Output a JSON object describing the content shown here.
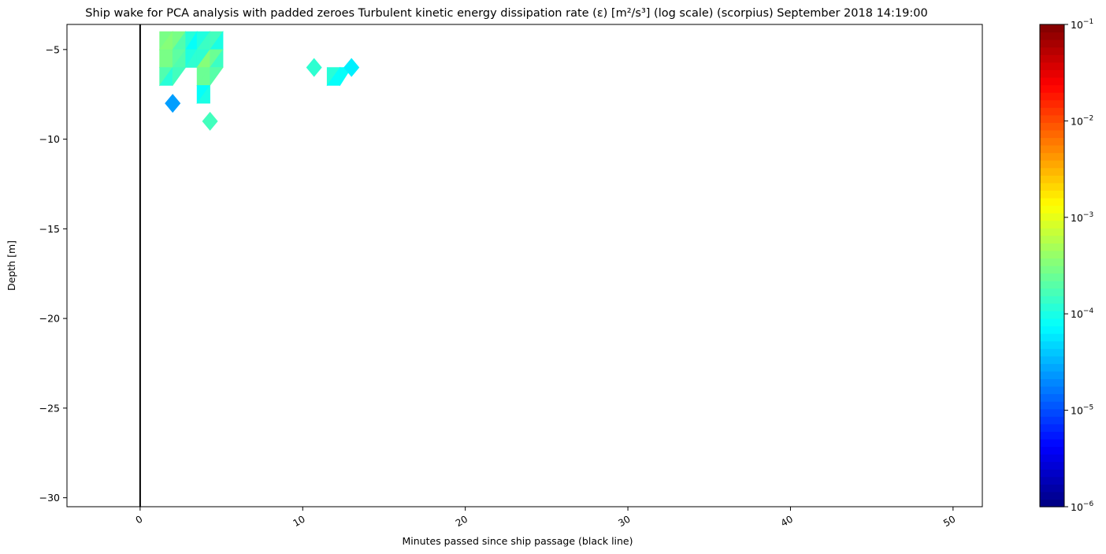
{
  "chart_data": {
    "type": "heatmap",
    "title": "Ship wake for PCA analysis with padded zeroes Turbulent kinetic energy dissipation rate (ε) [m²/s³] (log scale) (scorpius) September 2018 14:19:00",
    "xlabel": "Minutes passed since ship passage (black line)",
    "ylabel": "Depth [m]",
    "xlim": [
      -4.5,
      51.8
    ],
    "ylim": [
      -30.5,
      -3.6
    ],
    "x_ticks": [
      0,
      10,
      20,
      30,
      40,
      50
    ],
    "x_tick_labels": [
      "0",
      "10",
      "20",
      "30",
      "40",
      "50"
    ],
    "y_ticks": [
      -5,
      -10,
      -15,
      -20,
      -25,
      -30
    ],
    "y_tick_labels": [
      "−5",
      "−10",
      "−15",
      "−20",
      "−25",
      "−30"
    ],
    "ship_passage_line_x": 0,
    "ship_passage_line_color": "#000000",
    "colormap": "jet",
    "colorbar_scale": "log",
    "colorbar_range": [
      1e-06,
      0.1
    ],
    "colorbar_ticks": [
      {
        "value": 0.1,
        "base": "10",
        "exp": "−1"
      },
      {
        "value": 0.01,
        "base": "10",
        "exp": "−2"
      },
      {
        "value": 0.001,
        "base": "10",
        "exp": "−3"
      },
      {
        "value": 0.0001,
        "base": "10",
        "exp": "−4"
      },
      {
        "value": 1e-05,
        "base": "10",
        "exp": "−5"
      },
      {
        "value": 1e-06,
        "base": "10",
        "exp": "−6"
      }
    ],
    "depths": [
      -4,
      -5,
      -6,
      -7,
      -8,
      -9
    ],
    "profiles": [
      {
        "minute": 1.2,
        "log10_epsilon": [
          -3.6,
          -3.6,
          -3.6,
          -4.0,
          null,
          null
        ]
      },
      {
        "minute": 2.0,
        "log10_epsilon": [
          -3.4,
          -3.4,
          -3.6,
          -4.2,
          -4.6,
          null
        ]
      },
      {
        "minute": 2.8,
        "log10_epsilon": [
          -3.8,
          -4.0,
          -3.6,
          null,
          null,
          null
        ]
      },
      {
        "minute": 3.5,
        "log10_epsilon": [
          -4.0,
          -4.3,
          -3.8,
          -4.0,
          -4.5,
          null
        ]
      },
      {
        "minute": 4.3,
        "log10_epsilon": [
          -3.6,
          -3.6,
          -3.0,
          -3.8,
          -3.7,
          -3.8
        ]
      },
      {
        "minute": 5.1,
        "log10_epsilon": [
          -4.2,
          -4.2,
          -4.3,
          null,
          null,
          null
        ]
      },
      {
        "minute": 10.7,
        "log10_epsilon": [
          null,
          null,
          -3.9,
          null,
          null,
          null
        ]
      },
      {
        "minute": 11.5,
        "log10_epsilon": [
          null,
          null,
          -3.7,
          -4.2,
          null,
          null
        ]
      },
      {
        "minute": 12.3,
        "log10_epsilon": [
          null,
          null,
          -3.9,
          -4.2,
          null,
          null
        ]
      },
      {
        "minute": 13.0,
        "log10_epsilon": [
          null,
          null,
          -4.2,
          null,
          null,
          null
        ]
      }
    ]
  }
}
